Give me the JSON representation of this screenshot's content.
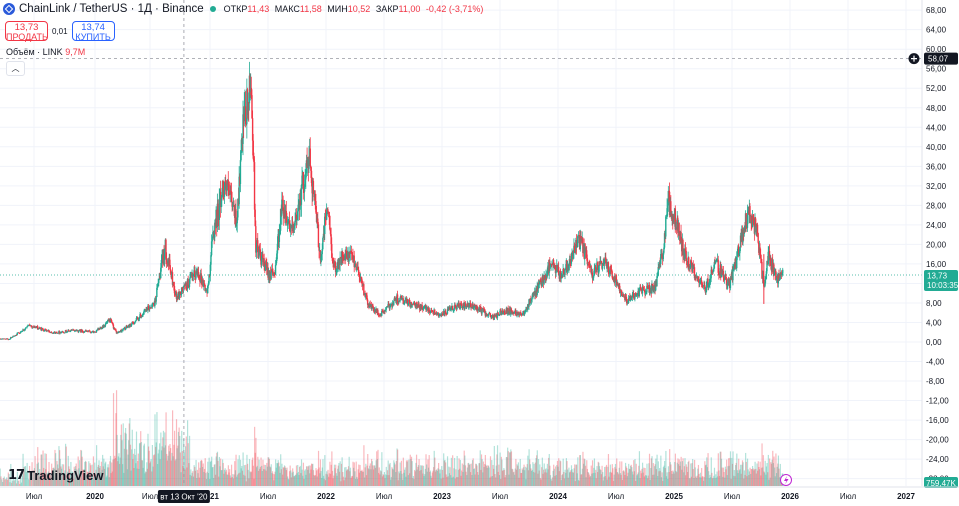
{
  "header": {
    "symbol": "ChainLink / TetherUS · 1Д · Binance",
    "open_label": "ОТКР",
    "open": "11,43",
    "high_label": "МАКС",
    "high": "11,58",
    "low_label": "МИН",
    "low": "10,52",
    "close_label": "ЗАКР",
    "close": "11,00",
    "change": "-0,42 (-3,71%)"
  },
  "trade": {
    "sell_price": "13,73",
    "sell_label": "ПРОДАТЬ",
    "spread": "0,01",
    "buy_price": "13,74",
    "buy_label": "КУПИТЬ"
  },
  "volume_legend": {
    "label": "Объём · LINK",
    "value": "9,7M"
  },
  "brand": {
    "name": "TradingView"
  },
  "colors": {
    "up": "#22ab94",
    "down": "#f23645",
    "axis_text": "#131722",
    "grid": "#f0f3fa"
  },
  "chart_data": {
    "type": "candlestick",
    "y_ticks": [
      "68,00",
      "64,00",
      "60,00",
      "56,00",
      "52,00",
      "48,00",
      "44,00",
      "40,00",
      "36,00",
      "32,00",
      "28,00",
      "24,00",
      "20,00",
      "16,00",
      "12,00",
      "8,00",
      "4,00",
      "0,00",
      "-4,00",
      "-8,00",
      "-12,00",
      "-16,00",
      "-20,00",
      "-24,00",
      "-28,00"
    ],
    "ylim": [
      -29,
      70
    ],
    "x_ticks": [
      {
        "label": "Июл",
        "date": "2019-07-01"
      },
      {
        "label": "2020",
        "date": "2020-01-01"
      },
      {
        "label": "Июл",
        "date": "2020-07-01"
      },
      {
        "label": "2021",
        "date": "2021-01-01"
      },
      {
        "label": "Июл",
        "date": "2021-07-01"
      },
      {
        "label": "2022",
        "date": "2022-01-01"
      },
      {
        "label": "Июл",
        "date": "2022-07-01"
      },
      {
        "label": "2023",
        "date": "2023-01-01"
      },
      {
        "label": "Июл",
        "date": "2023-07-01"
      },
      {
        "label": "2024",
        "date": "2024-01-01"
      },
      {
        "label": "Июл",
        "date": "2024-07-01"
      },
      {
        "label": "2025",
        "date": "2025-01-01"
      },
      {
        "label": "Июл",
        "date": "2025-07-01"
      },
      {
        "label": "2026",
        "date": "2026-01-01"
      },
      {
        "label": "Июл",
        "date": "2026-07-01"
      },
      {
        "label": "2027",
        "date": "2027-01-01"
      }
    ],
    "price_path": [
      [
        "2019-01-01",
        0.42
      ],
      [
        "2019-05-01",
        0.6
      ],
      [
        "2019-06-20",
        3.4
      ],
      [
        "2019-07-15",
        2.8
      ],
      [
        "2019-09-01",
        1.9
      ],
      [
        "2019-11-01",
        2.4
      ],
      [
        "2020-01-01",
        2.0
      ],
      [
        "2020-02-20",
        4.4
      ],
      [
        "2020-03-13",
        1.8
      ],
      [
        "2020-05-01",
        3.6
      ],
      [
        "2020-07-15",
        8.0
      ],
      [
        "2020-08-16",
        19.5
      ],
      [
        "2020-09-20",
        9.0
      ],
      [
        "2020-10-13",
        11.0
      ],
      [
        "2020-11-25",
        14.5
      ],
      [
        "2020-12-24",
        10.0
      ],
      [
        "2021-01-10",
        22.0
      ],
      [
        "2021-02-15",
        33.0
      ],
      [
        "2021-03-25",
        25.0
      ],
      [
        "2021-04-15",
        44.0
      ],
      [
        "2021-05-10",
        52.5
      ],
      [
        "2021-05-24",
        20.0
      ],
      [
        "2021-06-22",
        15.0
      ],
      [
        "2021-07-20",
        13.5
      ],
      [
        "2021-08-15",
        28.5
      ],
      [
        "2021-09-20",
        22.0
      ],
      [
        "2021-10-10",
        30.0
      ],
      [
        "2021-11-10",
        38.0
      ],
      [
        "2021-12-15",
        17.0
      ],
      [
        "2022-01-05",
        28.0
      ],
      [
        "2022-01-25",
        15.0
      ],
      [
        "2022-02-15",
        17.0
      ],
      [
        "2022-03-25",
        17.5
      ],
      [
        "2022-04-15",
        14.0
      ],
      [
        "2022-05-10",
        8.0
      ],
      [
        "2022-06-18",
        5.5
      ],
      [
        "2022-08-12",
        9.0
      ],
      [
        "2022-10-01",
        7.5
      ],
      [
        "2022-11-09",
        7.0
      ],
      [
        "2022-12-31",
        5.5
      ],
      [
        "2023-02-15",
        7.4
      ],
      [
        "2023-04-15",
        7.2
      ],
      [
        "2023-06-10",
        5.0
      ],
      [
        "2023-07-15",
        6.5
      ],
      [
        "2023-09-10",
        5.8
      ],
      [
        "2023-10-25",
        10.5
      ],
      [
        "2023-12-10",
        16.0
      ],
      [
        "2024-01-10",
        13.5
      ],
      [
        "2024-03-10",
        21.0
      ],
      [
        "2024-04-15",
        14.0
      ],
      [
        "2024-06-01",
        16.5
      ],
      [
        "2024-07-05",
        12.0
      ],
      [
        "2024-08-05",
        8.5
      ],
      [
        "2024-09-15",
        10.5
      ],
      [
        "2024-11-01",
        11.0
      ],
      [
        "2024-11-25",
        18.0
      ],
      [
        "2024-12-13",
        29.0
      ],
      [
        "2025-01-15",
        23.0
      ],
      [
        "2025-02-03",
        18.0
      ],
      [
        "2025-04-07",
        10.5
      ],
      [
        "2025-05-10",
        16.5
      ],
      [
        "2025-06-22",
        11.5
      ],
      [
        "2025-07-20",
        18.0
      ],
      [
        "2025-08-22",
        27.0
      ],
      [
        "2025-09-20",
        22.0
      ],
      [
        "2025-10-10",
        11.0
      ],
      [
        "2025-10-25",
        18.0
      ],
      [
        "2025-11-20",
        12.5
      ],
      [
        "2025-12-10",
        13.73
      ]
    ],
    "current_price": {
      "value": 13.73,
      "label": "13,73",
      "countdown": "10:03:35"
    },
    "crosshair": {
      "date": "2020-10-13",
      "date_label": "вт 13 Окт '20",
      "price": 58.07,
      "price_label": "58,07"
    },
    "volume_label": "759,47K",
    "spike_low": {
      "date": "2025-10-10",
      "value": 7.8
    }
  }
}
